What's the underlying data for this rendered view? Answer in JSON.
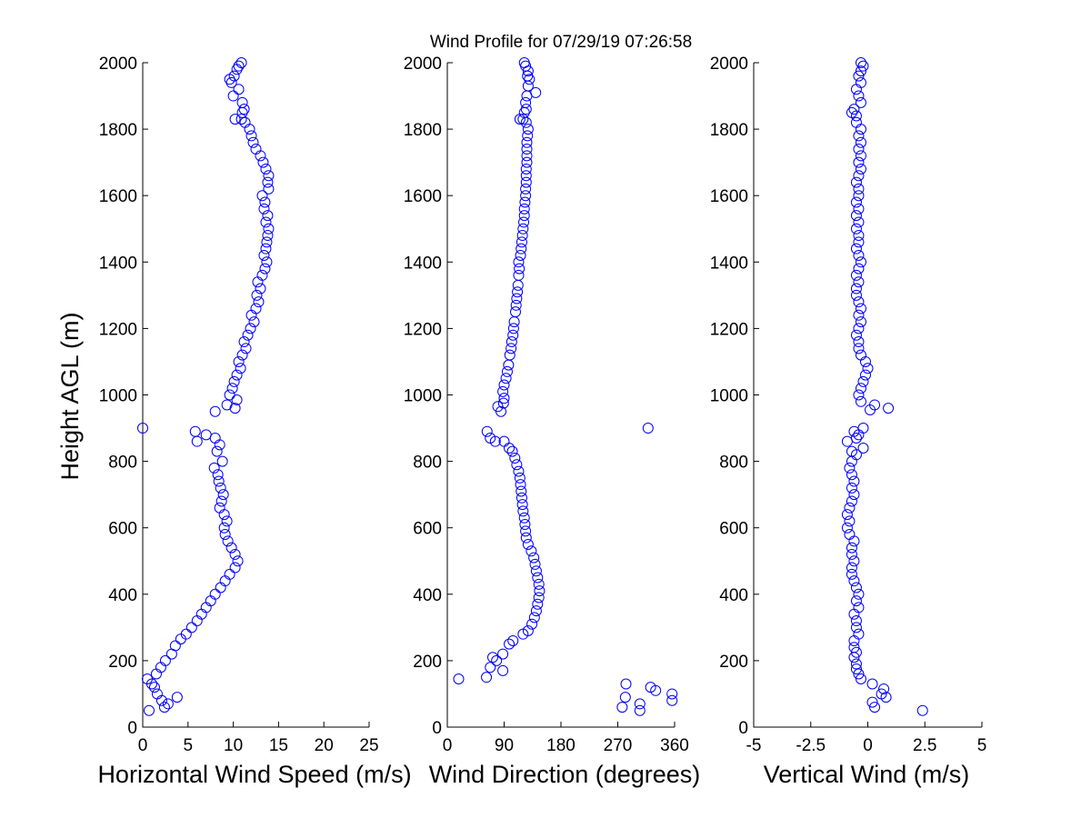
{
  "figure": {
    "title": "Wind Profile for  07/29/19 07:26:58",
    "marker_color": "#0000ff",
    "marker": "circle"
  },
  "chart_data": [
    {
      "type": "scatter",
      "xlabel": "Horizontal Wind Speed (m/s)",
      "ylabel": "Height AGL (m)",
      "xlim": [
        0,
        25
      ],
      "ylim": [
        0,
        2000
      ],
      "xticks": [
        "0",
        "5",
        "10",
        "15",
        "20",
        "25"
      ],
      "yticks": [
        "0",
        "200",
        "400",
        "600",
        "800",
        "1000",
        "1200",
        "1400",
        "1600",
        "1800",
        "2000"
      ],
      "points": [
        [
          0.7,
          50
        ],
        [
          2.4,
          60
        ],
        [
          3.8,
          90
        ],
        [
          2.8,
          70
        ],
        [
          2.1,
          80
        ],
        [
          1.6,
          100
        ],
        [
          1.3,
          120
        ],
        [
          1.0,
          130
        ],
        [
          0.5,
          145
        ],
        [
          1.5,
          160
        ],
        [
          2.0,
          180
        ],
        [
          2.5,
          200
        ],
        [
          3.2,
          220
        ],
        [
          3.6,
          245
        ],
        [
          4.2,
          265
        ],
        [
          4.8,
          280
        ],
        [
          5.4,
          300
        ],
        [
          6.0,
          320
        ],
        [
          6.5,
          340
        ],
        [
          7.0,
          360
        ],
        [
          7.5,
          380
        ],
        [
          8.0,
          400
        ],
        [
          8.6,
          420
        ],
        [
          9.1,
          440
        ],
        [
          9.6,
          460
        ],
        [
          10.2,
          480
        ],
        [
          10.5,
          500
        ],
        [
          10.2,
          520
        ],
        [
          9.8,
          540
        ],
        [
          9.4,
          560
        ],
        [
          9.1,
          580
        ],
        [
          9.0,
          600
        ],
        [
          9.3,
          620
        ],
        [
          9.0,
          640
        ],
        [
          8.5,
          660
        ],
        [
          8.7,
          680
        ],
        [
          8.9,
          700
        ],
        [
          8.6,
          720
        ],
        [
          8.4,
          740
        ],
        [
          8.3,
          760
        ],
        [
          7.9,
          780
        ],
        [
          8.8,
          800
        ],
        [
          8.2,
          830
        ],
        [
          8.5,
          850
        ],
        [
          8.0,
          870
        ],
        [
          6.0,
          860
        ],
        [
          5.8,
          890
        ],
        [
          0.0,
          900
        ],
        [
          7.0,
          880
        ],
        [
          8.0,
          950
        ],
        [
          10.2,
          960
        ],
        [
          9.3,
          970
        ],
        [
          10.4,
          985
        ],
        [
          9.6,
          1000
        ],
        [
          9.9,
          1020
        ],
        [
          10.1,
          1040
        ],
        [
          10.4,
          1060
        ],
        [
          10.8,
          1080
        ],
        [
          10.6,
          1100
        ],
        [
          11.0,
          1120
        ],
        [
          11.4,
          1140
        ],
        [
          11.2,
          1160
        ],
        [
          11.6,
          1180
        ],
        [
          11.9,
          1200
        ],
        [
          12.3,
          1220
        ],
        [
          12.0,
          1240
        ],
        [
          12.5,
          1260
        ],
        [
          12.8,
          1280
        ],
        [
          12.6,
          1300
        ],
        [
          13.0,
          1320
        ],
        [
          12.7,
          1340
        ],
        [
          13.2,
          1360
        ],
        [
          13.5,
          1380
        ],
        [
          13.7,
          1400
        ],
        [
          13.4,
          1420
        ],
        [
          13.6,
          1440
        ],
        [
          13.7,
          1460
        ],
        [
          13.8,
          1480
        ],
        [
          13.9,
          1500
        ],
        [
          13.6,
          1520
        ],
        [
          13.8,
          1540
        ],
        [
          13.4,
          1560
        ],
        [
          13.5,
          1580
        ],
        [
          13.2,
          1600
        ],
        [
          13.9,
          1620
        ],
        [
          13.8,
          1640
        ],
        [
          13.9,
          1660
        ],
        [
          13.6,
          1680
        ],
        [
          13.3,
          1700
        ],
        [
          13.0,
          1720
        ],
        [
          12.5,
          1740
        ],
        [
          12.2,
          1760
        ],
        [
          12.0,
          1780
        ],
        [
          11.8,
          1800
        ],
        [
          11.3,
          1820
        ],
        [
          10.9,
          1830
        ],
        [
          10.2,
          1830
        ],
        [
          11.0,
          1850
        ],
        [
          11.2,
          1860
        ],
        [
          11.0,
          1880
        ],
        [
          10.0,
          1900
        ],
        [
          10.6,
          1920
        ],
        [
          9.8,
          1940
        ],
        [
          9.6,
          1950
        ],
        [
          10.1,
          1960
        ],
        [
          10.4,
          1980
        ],
        [
          10.9,
          2000
        ],
        [
          10.6,
          1990
        ]
      ]
    },
    {
      "type": "scatter",
      "xlabel": "Wind Direction (degrees)",
      "xlim": [
        0,
        360
      ],
      "ylim": [
        0,
        2000
      ],
      "xticks": [
        "0",
        "90",
        "180",
        "270",
        "360"
      ],
      "yticks": [
        "0",
        "200",
        "400",
        "600",
        "800",
        "1000",
        "1200",
        "1400",
        "1600",
        "1800",
        "2000"
      ],
      "points": [
        [
          305,
          50
        ],
        [
          277,
          60
        ],
        [
          305,
          70
        ],
        [
          356,
          80
        ],
        [
          282,
          90
        ],
        [
          356,
          100
        ],
        [
          330,
          110
        ],
        [
          322,
          120
        ],
        [
          283,
          130
        ],
        [
          18,
          145
        ],
        [
          62,
          150
        ],
        [
          88,
          170
        ],
        [
          68,
          180
        ],
        [
          78,
          200
        ],
        [
          72,
          210
        ],
        [
          88,
          220
        ],
        [
          98,
          250
        ],
        [
          104,
          260
        ],
        [
          120,
          280
        ],
        [
          128,
          290
        ],
        [
          134,
          310
        ],
        [
          138,
          330
        ],
        [
          141,
          350
        ],
        [
          143,
          370
        ],
        [
          145,
          390
        ],
        [
          146,
          410
        ],
        [
          145,
          430
        ],
        [
          143,
          450
        ],
        [
          141,
          470
        ],
        [
          139,
          490
        ],
        [
          137,
          510
        ],
        [
          133,
          530
        ],
        [
          128,
          550
        ],
        [
          125,
          570
        ],
        [
          124,
          590
        ],
        [
          123,
          610
        ],
        [
          122,
          630
        ],
        [
          120,
          650
        ],
        [
          119,
          670
        ],
        [
          118,
          690
        ],
        [
          117,
          710
        ],
        [
          116,
          730
        ],
        [
          115,
          750
        ],
        [
          113,
          770
        ],
        [
          110,
          790
        ],
        [
          107,
          810
        ],
        [
          103,
          830
        ],
        [
          98,
          840
        ],
        [
          90,
          860
        ],
        [
          76,
          860
        ],
        [
          68,
          870
        ],
        [
          63,
          890
        ],
        [
          318,
          900
        ],
        [
          85,
          950
        ],
        [
          80,
          965
        ],
        [
          89,
          975
        ],
        [
          90,
          990
        ],
        [
          88,
          1010
        ],
        [
          90,
          1030
        ],
        [
          93,
          1050
        ],
        [
          95,
          1070
        ],
        [
          97,
          1090
        ],
        [
          99,
          1120
        ],
        [
          101,
          1140
        ],
        [
          102,
          1160
        ],
        [
          104,
          1180
        ],
        [
          105,
          1200
        ],
        [
          106,
          1220
        ],
        [
          108,
          1250
        ],
        [
          109,
          1270
        ],
        [
          110,
          1290
        ],
        [
          111,
          1310
        ],
        [
          112,
          1330
        ],
        [
          113,
          1360
        ],
        [
          114,
          1380
        ],
        [
          113,
          1400
        ],
        [
          116,
          1420
        ],
        [
          117,
          1440
        ],
        [
          118,
          1460
        ],
        [
          119,
          1480
        ],
        [
          120,
          1500
        ],
        [
          121,
          1520
        ],
        [
          122,
          1540
        ],
        [
          122,
          1560
        ],
        [
          123,
          1580
        ],
        [
          124,
          1600
        ],
        [
          124,
          1620
        ],
        [
          125,
          1640
        ],
        [
          125,
          1660
        ],
        [
          125,
          1680
        ],
        [
          126,
          1700
        ],
        [
          126,
          1720
        ],
        [
          126,
          1740
        ],
        [
          126,
          1760
        ],
        [
          127,
          1780
        ],
        [
          128,
          1800
        ],
        [
          125,
          1820
        ],
        [
          120,
          1830
        ],
        [
          115,
          1830
        ],
        [
          122,
          1850
        ],
        [
          125,
          1860
        ],
        [
          124,
          1880
        ],
        [
          126,
          1900
        ],
        [
          140,
          1910
        ],
        [
          128,
          1930
        ],
        [
          130,
          1950
        ],
        [
          127,
          1960
        ],
        [
          128,
          1975
        ],
        [
          124,
          1990
        ],
        [
          122,
          2000
        ]
      ]
    },
    {
      "type": "scatter",
      "xlabel": "Vertical Wind (m/s)",
      "xlim": [
        -5,
        5
      ],
      "ylim": [
        0,
        2000
      ],
      "xticks": [
        "-5",
        "-2.5",
        "0",
        "2.5",
        "5"
      ],
      "yticks": [
        "0",
        "200",
        "400",
        "600",
        "800",
        "1000",
        "1200",
        "1400",
        "1600",
        "1800",
        "2000"
      ],
      "points": [
        [
          2.4,
          50
        ],
        [
          0.3,
          60
        ],
        [
          0.2,
          75
        ],
        [
          0.8,
          90
        ],
        [
          0.6,
          100
        ],
        [
          0.7,
          115
        ],
        [
          0.2,
          130
        ],
        [
          -0.3,
          145
        ],
        [
          -0.4,
          160
        ],
        [
          -0.5,
          175
        ],
        [
          -0.5,
          190
        ],
        [
          -0.6,
          210
        ],
        [
          -0.5,
          225
        ],
        [
          -0.6,
          240
        ],
        [
          -0.6,
          260
        ],
        [
          -0.4,
          280
        ],
        [
          -0.5,
          300
        ],
        [
          -0.5,
          320
        ],
        [
          -0.6,
          340
        ],
        [
          -0.4,
          360
        ],
        [
          -0.5,
          380
        ],
        [
          -0.4,
          400
        ],
        [
          -0.5,
          420
        ],
        [
          -0.6,
          440
        ],
        [
          -0.7,
          460
        ],
        [
          -0.7,
          480
        ],
        [
          -0.6,
          500
        ],
        [
          -0.7,
          520
        ],
        [
          -0.7,
          540
        ],
        [
          -0.6,
          560
        ],
        [
          -0.8,
          580
        ],
        [
          -0.9,
          600
        ],
        [
          -0.8,
          620
        ],
        [
          -0.9,
          640
        ],
        [
          -0.8,
          660
        ],
        [
          -0.7,
          680
        ],
        [
          -0.6,
          700
        ],
        [
          -0.7,
          720
        ],
        [
          -0.6,
          740
        ],
        [
          -0.7,
          760
        ],
        [
          -0.8,
          780
        ],
        [
          -0.7,
          800
        ],
        [
          -0.5,
          820
        ],
        [
          -0.7,
          830
        ],
        [
          -0.9,
          860
        ],
        [
          -0.5,
          870
        ],
        [
          -0.6,
          890
        ],
        [
          -0.2,
          900
        ],
        [
          -0.4,
          880
        ],
        [
          -0.2,
          840
        ],
        [
          0.3,
          970
        ],
        [
          0.1,
          955
        ],
        [
          0.9,
          960
        ],
        [
          -0.3,
          980
        ],
        [
          -0.4,
          1000
        ],
        [
          -0.3,
          1020
        ],
        [
          -0.2,
          1040
        ],
        [
          -0.1,
          1060
        ],
        [
          0.0,
          1080
        ],
        [
          -0.1,
          1100
        ],
        [
          -0.3,
          1120
        ],
        [
          -0.4,
          1140
        ],
        [
          -0.4,
          1160
        ],
        [
          -0.5,
          1180
        ],
        [
          -0.4,
          1200
        ],
        [
          -0.3,
          1220
        ],
        [
          -0.4,
          1240
        ],
        [
          -0.3,
          1260
        ],
        [
          -0.4,
          1280
        ],
        [
          -0.5,
          1300
        ],
        [
          -0.5,
          1320
        ],
        [
          -0.4,
          1340
        ],
        [
          -0.5,
          1360
        ],
        [
          -0.4,
          1380
        ],
        [
          -0.3,
          1400
        ],
        [
          -0.4,
          1420
        ],
        [
          -0.5,
          1440
        ],
        [
          -0.4,
          1460
        ],
        [
          -0.4,
          1480
        ],
        [
          -0.5,
          1500
        ],
        [
          -0.4,
          1520
        ],
        [
          -0.5,
          1540
        ],
        [
          -0.4,
          1560
        ],
        [
          -0.5,
          1580
        ],
        [
          -0.4,
          1600
        ],
        [
          -0.4,
          1620
        ],
        [
          -0.5,
          1640
        ],
        [
          -0.4,
          1660
        ],
        [
          -0.3,
          1680
        ],
        [
          -0.4,
          1700
        ],
        [
          -0.3,
          1720
        ],
        [
          -0.4,
          1740
        ],
        [
          -0.3,
          1760
        ],
        [
          -0.4,
          1780
        ],
        [
          -0.3,
          1800
        ],
        [
          -0.5,
          1820
        ],
        [
          -0.5,
          1840
        ],
        [
          -0.7,
          1850
        ],
        [
          -0.6,
          1860
        ],
        [
          -0.3,
          1880
        ],
        [
          -0.4,
          1900
        ],
        [
          -0.5,
          1920
        ],
        [
          -0.3,
          1940
        ],
        [
          -0.4,
          1960
        ],
        [
          -0.3,
          1975
        ],
        [
          -0.2,
          1990
        ],
        [
          -0.3,
          2000
        ]
      ]
    }
  ]
}
